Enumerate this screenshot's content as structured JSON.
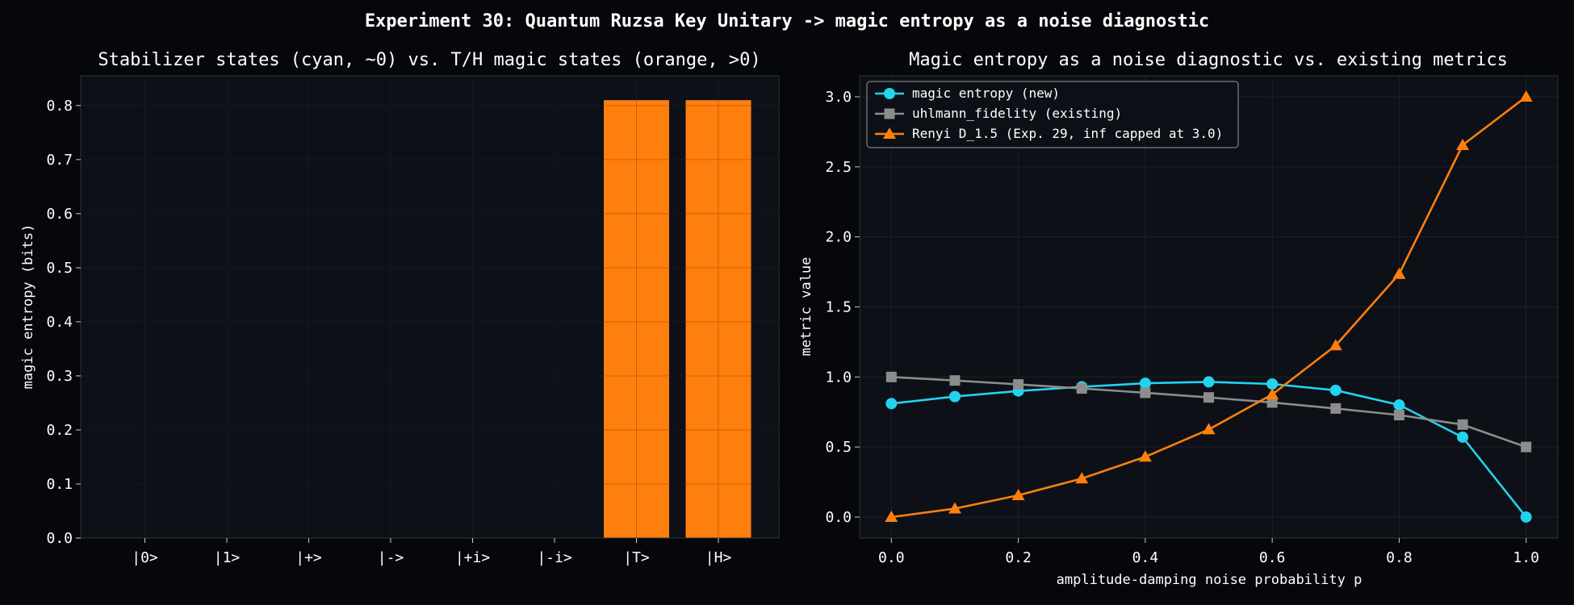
{
  "figure": {
    "suptitle": "Experiment 30: Quantum Ruzsa Key Unitary -> magic entropy as a noise diagnostic",
    "background": "#05070b",
    "axes_background": "#0d1016"
  },
  "chart_data": [
    {
      "type": "bar",
      "title": "Stabilizer states (cyan, ~0) vs. T/H magic states (orange, >0)",
      "xlabel": "",
      "ylabel": "magic entropy (bits)",
      "categories": [
        "|0>",
        "|1>",
        "|+>",
        "|->",
        "|+i>",
        "|-i>",
        "|T>",
        "|H>"
      ],
      "values": [
        0,
        0,
        0,
        0,
        0,
        0,
        0.81,
        0.81
      ],
      "colors": [
        "#22d3ee",
        "#22d3ee",
        "#22d3ee",
        "#22d3ee",
        "#22d3ee",
        "#22d3ee",
        "#ff7f0e",
        "#ff7f0e"
      ],
      "ylim": [
        0,
        0.855
      ],
      "yticks": [
        "0.0",
        "0.1",
        "0.2",
        "0.3",
        "0.4",
        "0.5",
        "0.6",
        "0.7",
        "0.8"
      ],
      "grid": true,
      "legend": "none"
    },
    {
      "type": "line",
      "title": "Magic entropy as a noise diagnostic vs. existing metrics",
      "xlabel": "amplitude-damping noise probability p",
      "ylabel": "metric value",
      "x": [
        0.0,
        0.1,
        0.2,
        0.3,
        0.4,
        0.5,
        0.6,
        0.7,
        0.8,
        0.9,
        1.0
      ],
      "xticks": [
        "0.0",
        "0.2",
        "0.4",
        "0.6",
        "0.8",
        "1.0"
      ],
      "yticks": [
        "0.0",
        "0.5",
        "1.0",
        "1.5",
        "2.0",
        "2.5",
        "3.0"
      ],
      "xlim": [
        -0.05,
        1.05
      ],
      "ylim": [
        -0.15,
        3.15
      ],
      "grid": true,
      "legend": "top-left",
      "series": [
        {
          "name": "magic entropy (new)",
          "color": "#22d3ee",
          "marker": "circle",
          "values": [
            0.81,
            0.86,
            0.9,
            0.93,
            0.955,
            0.965,
            0.95,
            0.905,
            0.8,
            0.57,
            0.0
          ]
        },
        {
          "name": "uhlmann_fidelity (existing)",
          "color": "#8c8c8c",
          "marker": "square",
          "values": [
            1.0,
            0.975,
            0.947,
            0.918,
            0.887,
            0.854,
            0.818,
            0.775,
            0.728,
            0.66,
            0.5
          ]
        },
        {
          "name": "Renyi D_1.5 (Exp. 29, inf capped at 3.0)",
          "color": "#ff7f0e",
          "marker": "triangle",
          "values": [
            0.0,
            0.06,
            0.155,
            0.275,
            0.43,
            0.625,
            0.875,
            1.225,
            1.735,
            2.655,
            3.0
          ]
        }
      ]
    }
  ]
}
